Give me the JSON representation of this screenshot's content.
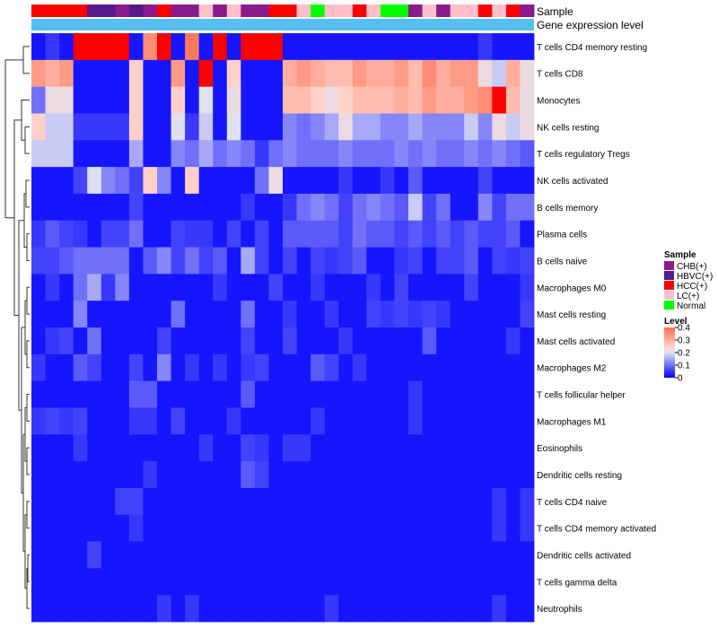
{
  "chart_data": {
    "type": "heatmap",
    "title": "",
    "annotation_tracks": [
      "Sample",
      "Gene expression level"
    ],
    "rows": [
      "T cells CD4 memory resting",
      "T cells CD8",
      "Monocytes",
      "NK cells resting",
      "T cells regulatory  Tregs",
      "NK cells activated",
      "B cells memory",
      "Plasma cells",
      "B cells naive",
      "Macrophages M0",
      "Mast cells resting",
      "Mast cells activated",
      "Macrophages M2",
      "T cells follicular helper",
      "Macrophages M1",
      "Eosinophils",
      "Dendritic cells resting",
      "T cells CD4 naive",
      "T cells CD4 memory activated",
      "Dendritic cells activated",
      "T cells gamma delta",
      "Neutrophils"
    ],
    "sample_groups": [
      "HCC(+)",
      "HCC(+)",
      "HCC(+)",
      "HCC(+)",
      "HBVC(+)",
      "HBVC(+)",
      "CHB(+)",
      "HBVC(+)",
      "CHB(+)",
      "HCC(+)",
      "CHB(+)",
      "CHB(+)",
      "LC(+)",
      "CHB(+)",
      "LC(+)",
      "CHB(+)",
      "CHB(+)",
      "HCC(+)",
      "HCC(+)",
      "LC(+)",
      "Normal",
      "LC(+)",
      "LC(+)",
      "HCC(+)",
      "LC(+)",
      "Normal",
      "Normal",
      "CHB(+)",
      "LC(+)",
      "CHB(+)",
      "LC(+)",
      "LC(+)",
      "HCC(+)",
      "LC(+)",
      "HCC(+)",
      "CHB(+)"
    ],
    "values": [
      [
        0.02,
        0.05,
        0.02,
        0.4,
        0.4,
        0.4,
        0.4,
        0.02,
        0.35,
        0.4,
        0.02,
        0.38,
        0.02,
        0.4,
        0.02,
        0.4,
        0.4,
        0.4,
        0.02,
        0.02,
        0.02,
        0.02,
        0.02,
        0.02,
        0.02,
        0.02,
        0.02,
        0.02,
        0.02,
        0.02,
        0.02,
        0.02,
        0.05,
        0.02,
        0.02,
        0.02
      ],
      [
        0.33,
        0.3,
        0.33,
        0.02,
        0.02,
        0.02,
        0.02,
        0.25,
        0.02,
        0.02,
        0.33,
        0.02,
        0.4,
        0.02,
        0.25,
        0.02,
        0.02,
        0.02,
        0.3,
        0.33,
        0.3,
        0.28,
        0.28,
        0.33,
        0.3,
        0.3,
        0.33,
        0.28,
        0.35,
        0.3,
        0.33,
        0.33,
        0.22,
        0.18,
        0.3,
        0.22
      ],
      [
        0.1,
        0.22,
        0.22,
        0.02,
        0.02,
        0.02,
        0.02,
        0.25,
        0.02,
        0.02,
        0.25,
        0.02,
        0.2,
        0.02,
        0.22,
        0.02,
        0.02,
        0.02,
        0.28,
        0.28,
        0.25,
        0.22,
        0.25,
        0.28,
        0.28,
        0.28,
        0.3,
        0.28,
        0.33,
        0.3,
        0.3,
        0.33,
        0.35,
        0.4,
        0.28,
        0.22
      ],
      [
        0.25,
        0.18,
        0.18,
        0.05,
        0.05,
        0.05,
        0.05,
        0.25,
        0.02,
        0.02,
        0.2,
        0.05,
        0.18,
        0.02,
        0.2,
        0.02,
        0.02,
        0.02,
        0.12,
        0.1,
        0.12,
        0.15,
        0.22,
        0.15,
        0.15,
        0.12,
        0.12,
        0.15,
        0.12,
        0.12,
        0.12,
        0.18,
        0.12,
        0.22,
        0.18,
        0.22
      ],
      [
        0.18,
        0.18,
        0.18,
        0.02,
        0.02,
        0.02,
        0.02,
        0.15,
        0.02,
        0.02,
        0.12,
        0.1,
        0.15,
        0.1,
        0.12,
        0.1,
        0.05,
        0.1,
        0.12,
        0.1,
        0.1,
        0.1,
        0.12,
        0.1,
        0.1,
        0.1,
        0.12,
        0.1,
        0.12,
        0.1,
        0.1,
        0.12,
        0.1,
        0.12,
        0.1,
        0.08
      ],
      [
        0.02,
        0.02,
        0.02,
        0.06,
        0.2,
        0.12,
        0.1,
        0.06,
        0.25,
        0.12,
        0.02,
        0.25,
        0.02,
        0.02,
        0.02,
        0.02,
        0.1,
        0.22,
        0.02,
        0.02,
        0.02,
        0.02,
        0.05,
        0.02,
        0.02,
        0.05,
        0.02,
        0.08,
        0.02,
        0.02,
        0.02,
        0.02,
        0.06,
        0.02,
        0.02,
        0.02
      ],
      [
        0.02,
        0.02,
        0.02,
        0.02,
        0.02,
        0.02,
        0.02,
        0.06,
        0.02,
        0.02,
        0.02,
        0.02,
        0.02,
        0.02,
        0.02,
        0.05,
        0.02,
        0.02,
        0.05,
        0.1,
        0.12,
        0.1,
        0.06,
        0.1,
        0.12,
        0.1,
        0.08,
        0.18,
        0.06,
        0.1,
        0.02,
        0.02,
        0.12,
        0.06,
        0.1,
        0.1
      ],
      [
        0.05,
        0.08,
        0.06,
        0.05,
        0.02,
        0.06,
        0.06,
        0.1,
        0.02,
        0.02,
        0.06,
        0.05,
        0.05,
        0.02,
        0.06,
        0.02,
        0.06,
        0.02,
        0.08,
        0.08,
        0.08,
        0.08,
        0.06,
        0.1,
        0.08,
        0.08,
        0.06,
        0.08,
        0.06,
        0.08,
        0.06,
        0.08,
        0.06,
        0.06,
        0.08,
        0.02
      ],
      [
        0.06,
        0.06,
        0.08,
        0.1,
        0.1,
        0.1,
        0.1,
        0.02,
        0.08,
        0.12,
        0.06,
        0.1,
        0.06,
        0.08,
        0.02,
        0.15,
        0.06,
        0.02,
        0.06,
        0.02,
        0.06,
        0.05,
        0.06,
        0.08,
        0.02,
        0.02,
        0.05,
        0.06,
        0.02,
        0.06,
        0.06,
        0.08,
        0.02,
        0.06,
        0.05,
        0.06
      ],
      [
        0.02,
        0.05,
        0.02,
        0.1,
        0.15,
        0.05,
        0.12,
        0.02,
        0.02,
        0.02,
        0.02,
        0.02,
        0.02,
        0.05,
        0.02,
        0.02,
        0.02,
        0.06,
        0.02,
        0.02,
        0.05,
        0.02,
        0.02,
        0.02,
        0.05,
        0.02,
        0.06,
        0.02,
        0.02,
        0.02,
        0.02,
        0.06,
        0.02,
        0.02,
        0.02,
        0.05
      ],
      [
        0.02,
        0.02,
        0.02,
        0.12,
        0.02,
        0.02,
        0.02,
        0.02,
        0.02,
        0.02,
        0.1,
        0.02,
        0.02,
        0.02,
        0.02,
        0.1,
        0.02,
        0.02,
        0.05,
        0.02,
        0.02,
        0.05,
        0.02,
        0.02,
        0.06,
        0.05,
        0.06,
        0.05,
        0.06,
        0.05,
        0.02,
        0.02,
        0.02,
        0.02,
        0.02,
        0.06
      ],
      [
        0.02,
        0.05,
        0.06,
        0.02,
        0.1,
        0.02,
        0.02,
        0.02,
        0.02,
        0.06,
        0.02,
        0.02,
        0.02,
        0.02,
        0.02,
        0.06,
        0.02,
        0.02,
        0.06,
        0.02,
        0.02,
        0.02,
        0.05,
        0.02,
        0.02,
        0.02,
        0.02,
        0.02,
        0.08,
        0.02,
        0.02,
        0.02,
        0.02,
        0.02,
        0.05,
        0.02
      ],
      [
        0.05,
        0.02,
        0.02,
        0.08,
        0.06,
        0.02,
        0.02,
        0.06,
        0.02,
        0.12,
        0.02,
        0.05,
        0.02,
        0.05,
        0.02,
        0.05,
        0.06,
        0.02,
        0.02,
        0.02,
        0.08,
        0.06,
        0.02,
        0.05,
        0.02,
        0.02,
        0.02,
        0.02,
        0.02,
        0.02,
        0.02,
        0.02,
        0.02,
        0.02,
        0.02,
        0.02
      ],
      [
        0.02,
        0.02,
        0.02,
        0.02,
        0.02,
        0.02,
        0.02,
        0.08,
        0.08,
        0.02,
        0.02,
        0.02,
        0.02,
        0.02,
        0.02,
        0.08,
        0.02,
        0.02,
        0.02,
        0.02,
        0.02,
        0.02,
        0.02,
        0.02,
        0.02,
        0.02,
        0.02,
        0.05,
        0.02,
        0.02,
        0.02,
        0.02,
        0.02,
        0.02,
        0.02,
        0.02
      ],
      [
        0.05,
        0.06,
        0.05,
        0.06,
        0.02,
        0.02,
        0.02,
        0.05,
        0.05,
        0.02,
        0.06,
        0.02,
        0.02,
        0.02,
        0.05,
        0.02,
        0.02,
        0.02,
        0.02,
        0.02,
        0.05,
        0.02,
        0.02,
        0.02,
        0.02,
        0.02,
        0.02,
        0.05,
        0.02,
        0.02,
        0.02,
        0.02,
        0.02,
        0.02,
        0.02,
        0.02
      ],
      [
        0.02,
        0.02,
        0.02,
        0.05,
        0.02,
        0.02,
        0.02,
        0.02,
        0.02,
        0.02,
        0.02,
        0.02,
        0.05,
        0.02,
        0.02,
        0.06,
        0.05,
        0.02,
        0.05,
        0.05,
        0.02,
        0.02,
        0.02,
        0.02,
        0.02,
        0.02,
        0.02,
        0.02,
        0.02,
        0.02,
        0.02,
        0.02,
        0.02,
        0.02,
        0.02,
        0.02
      ],
      [
        0.02,
        0.02,
        0.02,
        0.02,
        0.02,
        0.02,
        0.02,
        0.02,
        0.05,
        0.02,
        0.02,
        0.02,
        0.02,
        0.02,
        0.02,
        0.08,
        0.06,
        0.02,
        0.02,
        0.02,
        0.02,
        0.02,
        0.02,
        0.02,
        0.02,
        0.02,
        0.02,
        0.02,
        0.02,
        0.02,
        0.02,
        0.02,
        0.02,
        0.02,
        0.02,
        0.02
      ],
      [
        0.02,
        0.02,
        0.02,
        0.02,
        0.02,
        0.02,
        0.06,
        0.06,
        0.02,
        0.02,
        0.02,
        0.02,
        0.02,
        0.02,
        0.02,
        0.02,
        0.02,
        0.02,
        0.02,
        0.02,
        0.02,
        0.02,
        0.02,
        0.02,
        0.02,
        0.02,
        0.02,
        0.02,
        0.02,
        0.02,
        0.02,
        0.02,
        0.02,
        0.05,
        0.02,
        0.05
      ],
      [
        0.02,
        0.02,
        0.02,
        0.02,
        0.02,
        0.02,
        0.02,
        0.05,
        0.02,
        0.02,
        0.02,
        0.02,
        0.02,
        0.02,
        0.02,
        0.02,
        0.02,
        0.02,
        0.02,
        0.02,
        0.02,
        0.02,
        0.02,
        0.02,
        0.02,
        0.02,
        0.02,
        0.02,
        0.02,
        0.02,
        0.02,
        0.02,
        0.02,
        0.05,
        0.02,
        0.05
      ],
      [
        0.02,
        0.02,
        0.02,
        0.02,
        0.06,
        0.02,
        0.02,
        0.02,
        0.02,
        0.02,
        0.02,
        0.02,
        0.02,
        0.02,
        0.02,
        0.02,
        0.02,
        0.02,
        0.02,
        0.02,
        0.02,
        0.02,
        0.02,
        0.02,
        0.02,
        0.02,
        0.02,
        0.02,
        0.02,
        0.02,
        0.02,
        0.02,
        0.02,
        0.02,
        0.02,
        0.02
      ],
      [
        0.02,
        0.02,
        0.02,
        0.02,
        0.02,
        0.02,
        0.02,
        0.02,
        0.02,
        0.02,
        0.02,
        0.02,
        0.02,
        0.02,
        0.02,
        0.02,
        0.02,
        0.02,
        0.02,
        0.02,
        0.02,
        0.02,
        0.02,
        0.02,
        0.02,
        0.02,
        0.02,
        0.02,
        0.02,
        0.02,
        0.02,
        0.02,
        0.02,
        0.02,
        0.02,
        0.02
      ],
      [
        0.02,
        0.02,
        0.02,
        0.02,
        0.02,
        0.02,
        0.02,
        0.02,
        0.02,
        0.05,
        0.02,
        0.05,
        0.02,
        0.02,
        0.02,
        0.02,
        0.02,
        0.02,
        0.02,
        0.02,
        0.02,
        0.05,
        0.02,
        0.02,
        0.02,
        0.02,
        0.02,
        0.02,
        0.02,
        0.02,
        0.02,
        0.02,
        0.02,
        0.05,
        0.02,
        0.02
      ]
    ],
    "color_scale": {
      "min": 0,
      "max": 0.4,
      "stops": [
        {
          "value": 0,
          "color": "#0000FF"
        },
        {
          "value": 0.2,
          "color": "#E0E0F5"
        },
        {
          "value": 0.25,
          "color": "#FFD0C8"
        },
        {
          "value": 0.4,
          "color": "#FF6A4A"
        }
      ],
      "saturate_color": "#FF0000"
    },
    "legend": {
      "sample_title": "Sample",
      "sample_entries": [
        {
          "label": "CHB(+)",
          "color": "#8B1A8B"
        },
        {
          "label": "HBVC(+)",
          "color": "#55198B"
        },
        {
          "label": "HCC(+)",
          "color": "#FF0000"
        },
        {
          "label": "LC(+)",
          "color": "#FFC0CB"
        },
        {
          "label": "Normal",
          "color": "#00FF00"
        }
      ],
      "level_title": "Level",
      "level_ticks": [
        "0.4",
        "0.3",
        "0.2",
        "0.1",
        "0"
      ],
      "level_tick_values": [
        0.4,
        0.3,
        0.2,
        0.1,
        0
      ]
    },
    "expression_track_color": "#56BEF0",
    "placement": {
      "legend": "right",
      "row_labels": "right",
      "dendrogram": "left"
    }
  }
}
